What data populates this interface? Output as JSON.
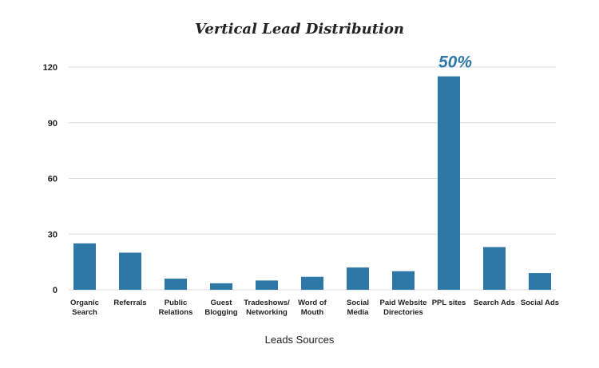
{
  "chart_data": {
    "type": "bar",
    "title": "Vertical Lead Distribution",
    "xlabel": "Leads Sources",
    "ylabel": "",
    "categories": [
      [
        "Organic",
        "Search"
      ],
      [
        "Referrals"
      ],
      [
        "Public",
        "Relations"
      ],
      [
        "Guest",
        "Blogging"
      ],
      [
        "Tradeshows/",
        "Networking"
      ],
      [
        "Word of",
        "Mouth"
      ],
      [
        "Social",
        "Media"
      ],
      [
        "Paid Website",
        "Directories"
      ],
      [
        "PPL sites"
      ],
      [
        "Search Ads"
      ],
      [
        "Social Ads"
      ]
    ],
    "values": [
      25,
      20,
      6,
      3.5,
      5,
      7,
      12,
      10,
      115,
      23,
      9
    ],
    "ylim": [
      0,
      120
    ],
    "yticks": [
      0,
      30,
      60,
      90,
      120
    ],
    "grid": true,
    "annotation": {
      "text": "50%",
      "category_index": 8
    },
    "colors": {
      "bar": "#2e78a8",
      "annotation": "#2e78a8",
      "grid": "#dcdcdc"
    }
  }
}
